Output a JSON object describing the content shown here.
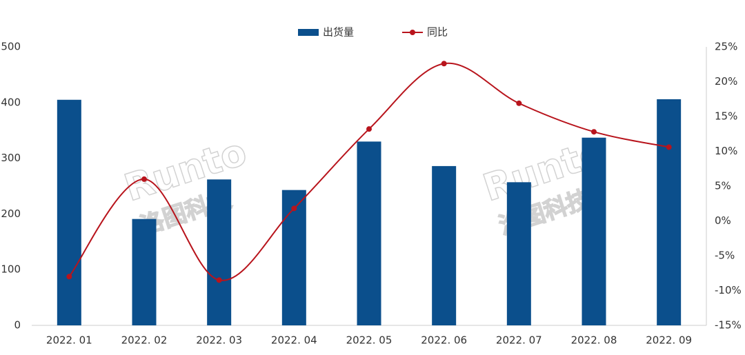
{
  "chart_data": {
    "type": "bar-line",
    "categories": [
      "2022. 01",
      "2022. 02",
      "2022. 03",
      "2022. 04",
      "2022. 05",
      "2022. 06",
      "2022. 07",
      "2022. 08",
      "2022. 09"
    ],
    "series": [
      {
        "name": "出货量",
        "type": "bar",
        "color": "#0b4f8c",
        "values": [
          405,
          191,
          262,
          243,
          330,
          286,
          257,
          337,
          406
        ]
      },
      {
        "name": "同比",
        "type": "line",
        "axis": "y2",
        "color": "#b8141c",
        "values": [
          -8.0,
          6.0,
          -8.5,
          1.8,
          13.2,
          22.6,
          16.9,
          12.8,
          10.6
        ]
      }
    ],
    "ylim": [
      0,
      500
    ],
    "yticks": [
      0,
      100,
      200,
      300,
      400,
      500
    ],
    "y2lim": [
      -15,
      25
    ],
    "y2ticks": [
      {
        "value": -15,
        "label": "-15%"
      },
      {
        "value": -10,
        "label": "-10%"
      },
      {
        "value": -5,
        "label": "-5%"
      },
      {
        "value": 0,
        "label": "0%"
      },
      {
        "value": 5,
        "label": "5%"
      },
      {
        "value": 10,
        "label": "10%"
      },
      {
        "value": 15,
        "label": "15%"
      },
      {
        "value": 20,
        "label": "20%"
      },
      {
        "value": 25,
        "label": "25%"
      }
    ],
    "legend": "top",
    "watermark": [
      "Runto",
      "洛图科技"
    ]
  }
}
